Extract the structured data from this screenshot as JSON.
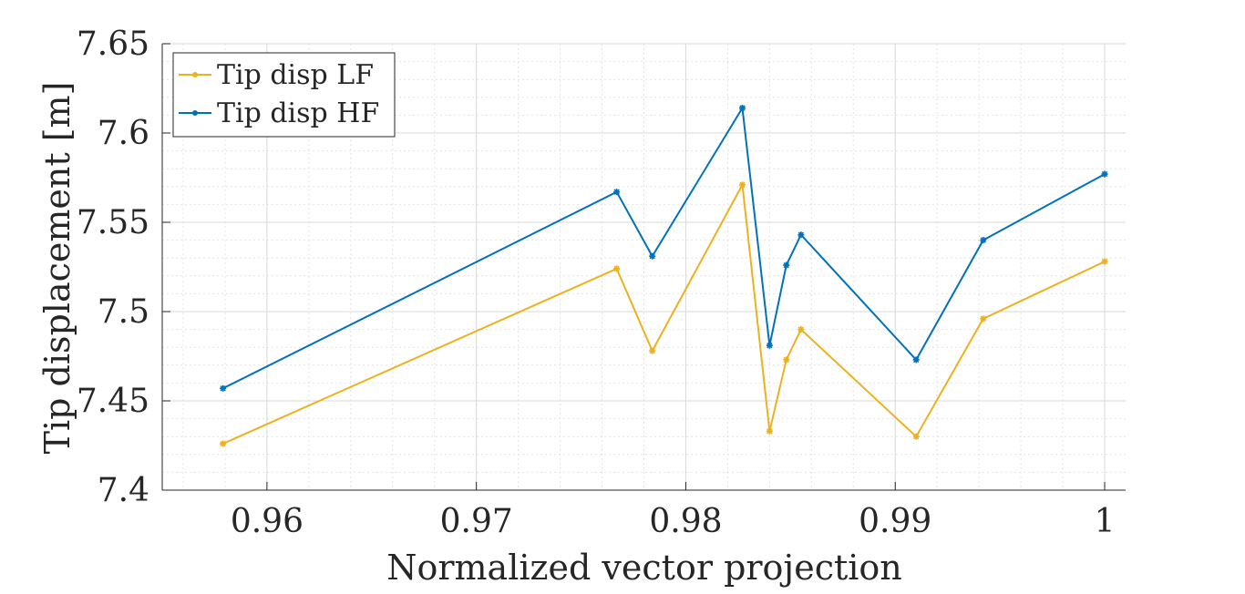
{
  "chart_data": {
    "type": "line",
    "title": "",
    "xlabel": "Normalized vector projection",
    "ylabel": "Tip displacement [m]",
    "xlim": [
      0.955,
      1.001
    ],
    "ylim": [
      7.4,
      7.65
    ],
    "xticks": [
      0.96,
      0.97,
      0.98,
      0.99,
      1
    ],
    "xtick_labels": [
      "0.96",
      "0.97",
      "0.98",
      "0.99",
      "1"
    ],
    "yticks": [
      7.4,
      7.45,
      7.5,
      7.55,
      7.6,
      7.65
    ],
    "ytick_labels": [
      "7.4",
      "7.45",
      "7.5",
      "7.55",
      "7.6",
      "7.65"
    ],
    "grid": true,
    "minor_grid": true,
    "legend_position": "top-left",
    "x": [
      0.9579,
      0.9767,
      0.9784,
      0.9827,
      0.984,
      0.9848,
      0.9855,
      0.991,
      0.9942,
      1.0
    ],
    "series": [
      {
        "name": "Tip disp LF",
        "color": "#EDB120",
        "marker": "asterisk",
        "values": [
          7.426,
          7.524,
          7.478,
          7.571,
          7.433,
          7.473,
          7.49,
          7.43,
          7.496,
          7.528
        ]
      },
      {
        "name": "Tip disp HF",
        "color": "#0072BD",
        "marker": "asterisk",
        "values": [
          7.457,
          7.567,
          7.531,
          7.614,
          7.481,
          7.526,
          7.543,
          7.473,
          7.54,
          7.577
        ]
      }
    ]
  }
}
